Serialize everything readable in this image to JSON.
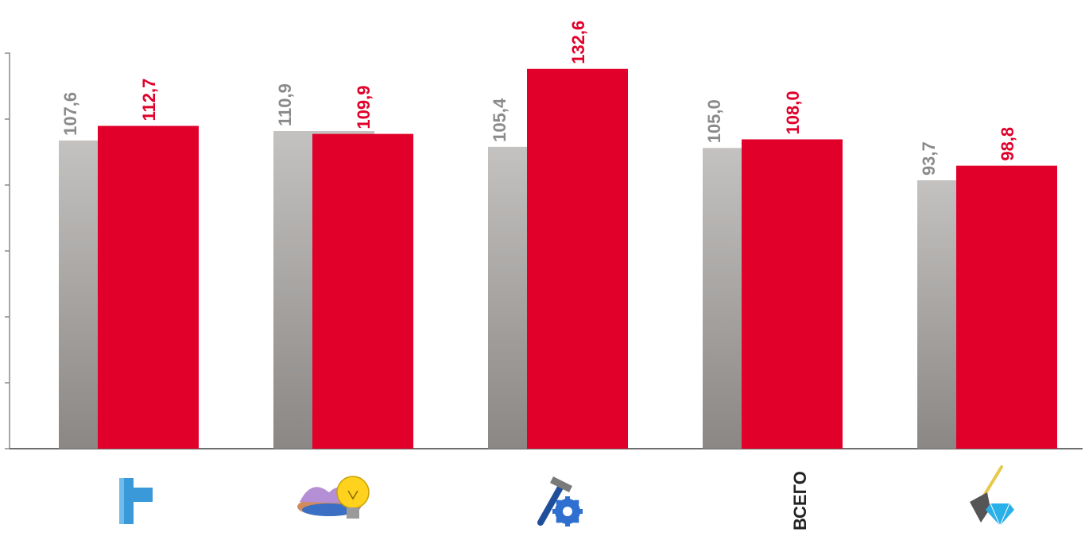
{
  "chart_data": {
    "type": "bar",
    "categories": [
      "",
      "",
      "",
      "ВСЕГО",
      ""
    ],
    "category_icons": [
      "pipe-icon",
      "gas-flame-lightbulb-icon",
      "hammer-gear-icon",
      "",
      "shovel-diamond-icon"
    ],
    "series": [
      {
        "values": [
          107.6,
          110.9,
          105.4,
          105.0,
          93.7
        ],
        "labels": [
          "107,6",
          "110,9",
          "105,4",
          "105,0",
          "93,7"
        ],
        "color": "#a9a6a4",
        "label_color": "#8c8a89"
      },
      {
        "values": [
          112.7,
          109.9,
          132.6,
          108.0,
          98.8
        ],
        "labels": [
          "112,7",
          "109,9",
          "132,6",
          "108,0",
          "98,8"
        ],
        "color": "#e0002a",
        "label_color": "#e0002a"
      }
    ],
    "ylim": [
      0,
      150
    ],
    "grid": false,
    "legend": "none",
    "title": "",
    "xlabel": "",
    "ylabel": ""
  }
}
